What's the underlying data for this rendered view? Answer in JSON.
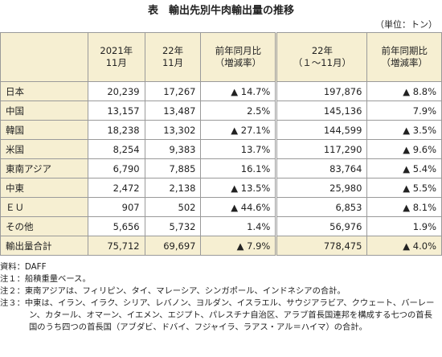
{
  "header": {
    "title": "表　輸出先別牛肉輸出量の推移",
    "unit": "（単位：トン）"
  },
  "table": {
    "columns": [
      "2021年\n11月",
      "22年\n11月",
      "前年同月比\n（増減率）",
      "22年\n（１〜11月）",
      "前年同期比\n（増減率）"
    ],
    "rows": [
      [
        "日本",
        "20,239",
        "17,267",
        "▲ 14.7%",
        "197,876",
        "▲ 8.8%"
      ],
      [
        "中国",
        "13,157",
        "13,487",
        "2.5%",
        "145,136",
        "7.9%"
      ],
      [
        "韓国",
        "18,238",
        "13,302",
        "▲ 27.1%",
        "144,599",
        "▲ 3.5%"
      ],
      [
        "米国",
        "8,254",
        "9,383",
        "13.7%",
        "117,290",
        "▲ 9.6%"
      ],
      [
        "東南アジア",
        "6,790",
        "7,885",
        "16.1%",
        "83,764",
        "▲ 5.4%"
      ],
      [
        "中東",
        "2,472",
        "2,138",
        "▲ 13.5%",
        "25,980",
        "▲ 5.5%"
      ],
      [
        "ＥＵ",
        "907",
        "502",
        "▲ 44.6%",
        "6,853",
        "▲ 8.1%"
      ],
      [
        "その他",
        "5,656",
        "5,732",
        "1.4%",
        "56,976",
        "1.9%"
      ],
      [
        "輸出量合計",
        "75,712",
        "69,697",
        "▲ 7.9%",
        "778,475",
        "▲ 4.0%"
      ]
    ]
  },
  "notes": [
    "資料：DAFF",
    "注１：船積重量ベース。",
    "注２：東南アジアは、フィリピン、タイ、マレーシア、シンガポール、インドネシアの合計。",
    "注３：中東は、イラン、イラク、シリア、レバノン、ヨルダン、イスラエル、サウジアラビア、クウェート、バーレーン、カタール、オマーン、イエメン、エジプト、パレスチナ自治区、アラブ首長国連邦を構成する七つの首長国のうち四つの首長国（アブダビ、ドバイ、フジャイラ、ラアス・アル＝ハイマ）の合計。"
  ]
}
